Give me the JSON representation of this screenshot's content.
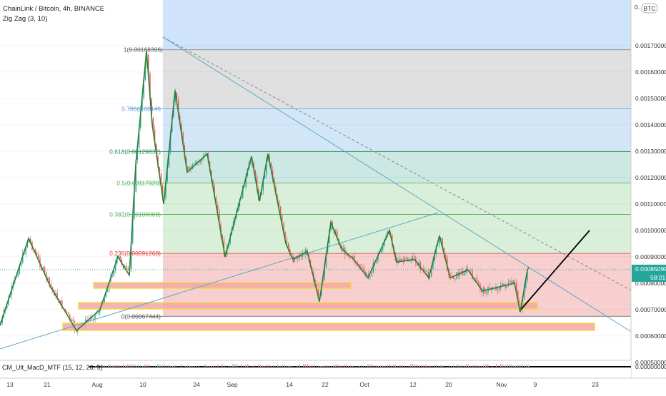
{
  "header": {
    "title": "ChainLink / Bitcoin, 4h, BINANCE",
    "indicator": "Zig Zag (3, 10)",
    "currency_badge": "BTC",
    "lower_indicator": "CM_Ult_MacD_MTF (15, 12, 26, 9)"
  },
  "colors": {
    "zigzag": "#2e7d32",
    "trendline": "#5aa9c8",
    "fib_grey": "#e0e0e0",
    "fib_blue": "#d2e6f8",
    "fib_teal": "#cbe8e2",
    "fib_green": "#d9efd9",
    "fib_red": "#f8cfcf",
    "range_blue": "#cfe3fb",
    "support_fill": "#f3a6a6",
    "support_border": "#f5d847",
    "projection": "#000000",
    "price_badge": "#26a69a"
  },
  "price_axis": {
    "labels": [
      "0.00170000",
      "0.00160000",
      "0.00150000",
      "0.00140000",
      "0.00130000",
      "0.00120000",
      "0.00110000",
      "0.00100000",
      "0.00090000",
      "0.00080000",
      "0.00070000",
      "0.00060000",
      "0.00050000"
    ],
    "values": [
      0.0017,
      0.0016,
      0.0015,
      0.0014,
      0.0013,
      0.0012,
      0.0011,
      0.001,
      0.0009,
      0.0008,
      0.0007,
      0.0006,
      0.0005
    ],
    "top_partial": "0.",
    "current_price": "0.00085099",
    "countdown": "58:01",
    "indicator_zero": "0.00000000"
  },
  "time_axis": {
    "labels": [
      "13",
      "21",
      "Aug",
      "10",
      "24",
      "Sep",
      "14",
      "22",
      "Oct",
      "12",
      "20",
      "Nov",
      "9",
      "23"
    ]
  },
  "fib_levels": [
    {
      "ratio": "1",
      "value": "0.00168396",
      "price": 0.00168396
    },
    {
      "ratio": "0.786",
      "value": "0.00146",
      "price": 0.00146
    },
    {
      "ratio": "0.618",
      "value": "0.00129832",
      "price": 0.00129832
    },
    {
      "ratio": "0.5",
      "value": "0.00117920",
      "price": 0.0011792
    },
    {
      "ratio": "0.382",
      "value": "0.00106008",
      "price": 0.00106008
    },
    {
      "ratio": "0.236",
      "value": "0.00091268",
      "price": 0.00091268
    },
    {
      "ratio": "0",
      "value": "0.00067444",
      "price": 0.00067444
    }
  ],
  "fib_text": [
    "1(0.00168396)",
    "0.786(0.00146",
    "0.618(0.00129832)",
    "0.5(0.00117920)",
    "0.382(0.00106008)",
    "0.236(0.00091268)",
    "0(0.00067444)"
  ],
  "chart_data": {
    "type": "line",
    "title": "ChainLink / Bitcoin, 4h, BINANCE",
    "xlabel": "",
    "ylabel": "",
    "ylim": [
      0.00048,
      0.0018
    ],
    "x_ticks": [
      "13",
      "21",
      "Aug",
      "10",
      "24",
      "Sep",
      "14",
      "22",
      "Oct",
      "12",
      "20",
      "Nov",
      "9",
      "23"
    ],
    "series": [
      {
        "name": "Zig Zag (3, 10)",
        "x": [
          "Jul 13",
          "Jul 18",
          "Jul 21",
          "Jul 24",
          "Jul 27",
          "Jul 30",
          "Aug 3",
          "Aug 6",
          "Aug 10",
          "Aug 12",
          "Aug 15",
          "Aug 18",
          "Aug 20",
          "Aug 23",
          "Aug 26",
          "Aug 30",
          "Sep 2",
          "Sep 5",
          "Sep 8",
          "Sep 11",
          "Sep 15",
          "Sep 17",
          "Sep 20",
          "Sep 22",
          "Sep 25",
          "Sep 29",
          "Oct 1",
          "Oct 4",
          "Oct 7",
          "Oct 12",
          "Oct 15",
          "Oct 19",
          "Oct 22",
          "Oct 25",
          "Oct 29",
          "Nov 1",
          "Nov 5",
          "Nov 7"
        ],
        "y": [
          0.00064,
          0.00097,
          0.00079,
          0.00062,
          0.0007,
          0.0009,
          0.00083,
          0.00125,
          0.00168,
          0.0014,
          0.0011,
          0.00153,
          0.00122,
          0.00129,
          0.0009,
          0.00128,
          0.00111,
          0.00129,
          0.00095,
          0.00089,
          0.00092,
          0.00073,
          0.00103,
          0.00093,
          0.00089,
          0.00082,
          0.001,
          0.00088,
          0.00089,
          0.00082,
          0.00098,
          0.00082,
          0.00085,
          0.00077,
          0.0008,
          0.00069,
          0.00085,
          0.00086
        ]
      }
    ],
    "fib_retracement": {
      "high": 0.00168396,
      "low": 0.00067444
    },
    "current_price": 0.00085099
  }
}
